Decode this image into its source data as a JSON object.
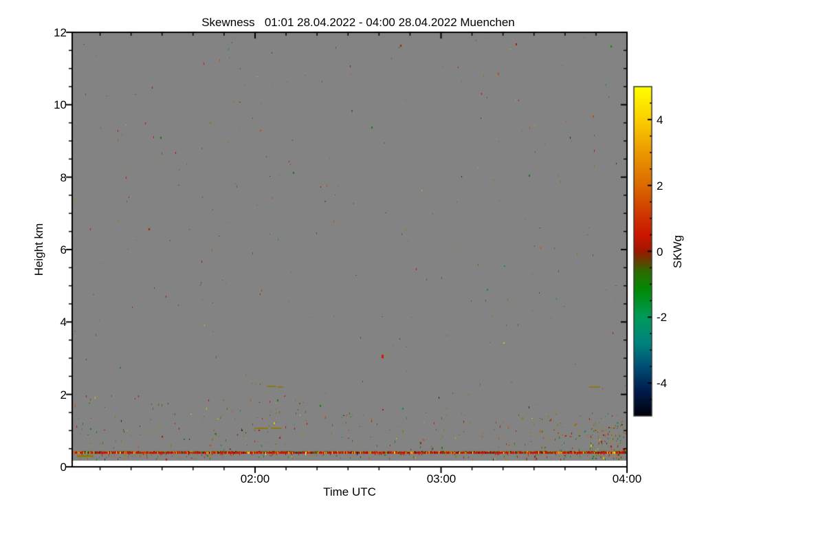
{
  "chart_data": {
    "type": "heatmap",
    "title": "Skewness   01:01 28.04.2022 - 04:00 28.04.2022 Muenchen",
    "xlabel": "Time UTC",
    "ylabel": "Height km",
    "x_start": "01:01",
    "x_end": "04:00",
    "x_tick_labels": [
      "02:00",
      "03:00",
      "04:00"
    ],
    "x_major_tick_minutes": [
      120,
      180,
      240
    ],
    "x_minor_step_minutes": 10,
    "ylim": [
      0,
      12
    ],
    "y_tick_labels": [
      "12",
      "10",
      "8",
      "6",
      "4",
      "2",
      "0"
    ],
    "y_major_step_km": 2,
    "y_minor_step_km": 0.5,
    "grid": false,
    "background": {
      "color": "#838383",
      "meaning": "no-signal fill"
    },
    "data_gap_below_km": 0.17,
    "surface_stripe": {
      "center_km": 0.4,
      "dominant_value": 1,
      "y_top": 656,
      "main_y": 657,
      "main_h": 3,
      "top_row_prob": 0.55,
      "top_palette": [
        [
          "#1f7a18",
          30
        ],
        [
          "#8a7a10",
          28
        ],
        [
          "#9c1200",
          18
        ],
        [
          "#d9c800",
          8
        ],
        [
          "#1c1c1c",
          8
        ],
        [
          "#c84a00",
          8
        ]
      ],
      "main_palette": [
        [
          "#cc1600",
          60
        ],
        [
          "#a81200",
          12
        ],
        [
          "#e8d000",
          6
        ],
        [
          "#d86a00",
          6
        ],
        [
          "#1c1c1c",
          5
        ],
        [
          "#1f7a18",
          6
        ],
        [
          "#ffff40",
          3
        ],
        [
          "#8a7a10",
          2
        ]
      ]
    },
    "noise": {
      "seed": 20220428,
      "palette": [
        [
          "#b11800",
          20
        ],
        [
          "#c84a00",
          10
        ],
        [
          "#8a7a10",
          24
        ],
        [
          "#a08800",
          8
        ],
        [
          "#1f7a18",
          22
        ],
        [
          "#0f8a60",
          5
        ],
        [
          "#d9c800",
          4
        ],
        [
          "#262626",
          3
        ],
        [
          "#934d00",
          6
        ]
      ],
      "regions": [
        {
          "x0": 106,
          "x1": 911,
          "y0": 50,
          "y1": 652,
          "n": 300
        },
        {
          "x0": 106,
          "x1": 460,
          "y0": 575,
          "y1": 654,
          "n": 110
        },
        {
          "x0": 460,
          "x1": 790,
          "y0": 600,
          "y1": 654,
          "n": 70
        },
        {
          "x0": 770,
          "x1": 911,
          "y0": 600,
          "y1": 668,
          "n": 150
        },
        {
          "x0": 106,
          "x1": 911,
          "y0": 661,
          "y1": 668,
          "n": 110
        },
        {
          "x0": 858,
          "x1": 911,
          "y0": 615,
          "y1": 668,
          "n": 70
        }
      ]
    },
    "features": [
      {
        "x": 388,
        "y": 561,
        "w": 14,
        "h": 2,
        "color": "#8a7a10"
      },
      {
        "x": 404,
        "y": 562,
        "w": 8,
        "h": 2,
        "color": "#8a7a10"
      },
      {
        "x": 857,
        "y": 562,
        "w": 16,
        "h": 2,
        "color": "#8a7a10"
      },
      {
        "x": 370,
        "y": 622,
        "w": 20,
        "h": 2,
        "color": "#8a7a10"
      },
      {
        "x": 394,
        "y": 622,
        "w": 16,
        "h": 2,
        "color": "#8a7a10"
      },
      {
        "x": 112,
        "y": 662,
        "w": 24,
        "h": 3,
        "color": "#8a7a10"
      },
      {
        "x": 555,
        "y": 516,
        "w": 3,
        "h": 5,
        "color": "#d01800"
      }
    ],
    "colorbar": {
      "label": "SKWg",
      "range": [
        -5,
        5
      ],
      "tick_labels": [
        "4",
        "2",
        "0",
        "-2",
        "-4"
      ],
      "major_tick_values": [
        4,
        2,
        0,
        -2,
        -4
      ],
      "minor_step": 0.5,
      "gradient_stops_top_to_bottom": [
        [
          0.0,
          "#ffff00"
        ],
        [
          0.1,
          "#fbcf00"
        ],
        [
          0.2,
          "#eb9800"
        ],
        [
          0.3,
          "#dc6a00"
        ],
        [
          0.38,
          "#d03c00"
        ],
        [
          0.45,
          "#cc1500"
        ],
        [
          0.5,
          "#9c1800"
        ],
        [
          0.53,
          "#643f00"
        ],
        [
          0.56,
          "#2e6a00"
        ],
        [
          0.62,
          "#008c07"
        ],
        [
          0.7,
          "#009a5c"
        ],
        [
          0.78,
          "#00827d"
        ],
        [
          0.85,
          "#004e74"
        ],
        [
          0.92,
          "#001d51"
        ],
        [
          1.0,
          "#000208"
        ]
      ]
    }
  }
}
